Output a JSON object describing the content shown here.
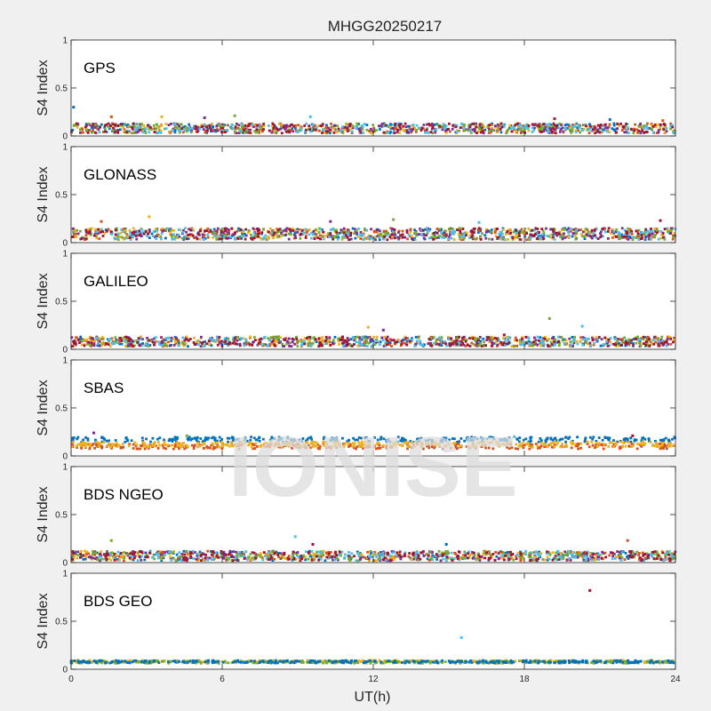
{
  "figure": {
    "title": "MHGG20250217",
    "xlabel": "UT(h)",
    "watermark": "IONISE"
  },
  "colors": [
    "#0072BD",
    "#D95319",
    "#EDB120",
    "#7E2F8E",
    "#77AC30",
    "#4DBEEE",
    "#A2142F"
  ],
  "chart_data": [
    {
      "type": "scatter",
      "panel_label": "GPS",
      "ylabel": "S4 Index",
      "xlim": [
        0,
        24
      ],
      "ylim": [
        0,
        1
      ],
      "xticks": [
        0,
        6,
        12,
        18,
        24
      ],
      "yticks": [
        0,
        0.5,
        1
      ],
      "show_xtick_labels": false,
      "baseline": 0.08,
      "spread": 0.05,
      "spikes": [
        [
          0.1,
          0.3
        ],
        [
          1.6,
          0.2
        ],
        [
          3.6,
          0.2
        ],
        [
          5.3,
          0.19
        ],
        [
          6.5,
          0.21
        ],
        [
          9.5,
          0.2
        ],
        [
          19.2,
          0.18
        ],
        [
          21.4,
          0.17
        ],
        [
          23.5,
          0.16
        ]
      ],
      "series": [
        {
          "color_index": 0
        },
        {
          "color_index": 1
        },
        {
          "color_index": 2
        },
        {
          "color_index": 3
        },
        {
          "color_index": 4
        },
        {
          "color_index": 5
        },
        {
          "color_index": 6
        }
      ]
    },
    {
      "type": "scatter",
      "panel_label": "GLONASS",
      "ylabel": "S4 Index",
      "xlim": [
        0,
        24
      ],
      "ylim": [
        0,
        1
      ],
      "xticks": [
        0,
        6,
        12,
        18,
        24
      ],
      "yticks": [
        0,
        0.5,
        1
      ],
      "show_xtick_labels": false,
      "baseline": 0.09,
      "spread": 0.06,
      "spikes": [
        [
          1.2,
          0.22
        ],
        [
          3.1,
          0.27
        ],
        [
          10.3,
          0.22
        ],
        [
          12.8,
          0.24
        ],
        [
          16.2,
          0.21
        ],
        [
          23.4,
          0.23
        ]
      ],
      "series": [
        {
          "color_index": 0
        },
        {
          "color_index": 1
        },
        {
          "color_index": 2
        },
        {
          "color_index": 3
        },
        {
          "color_index": 4
        },
        {
          "color_index": 5
        },
        {
          "color_index": 6
        }
      ]
    },
    {
      "type": "scatter",
      "panel_label": "GALILEO",
      "ylabel": "S4 Index",
      "xlim": [
        0,
        24
      ],
      "ylim": [
        0,
        1
      ],
      "xticks": [
        0,
        6,
        12,
        18,
        24
      ],
      "yticks": [
        0,
        0.5,
        1
      ],
      "show_xtick_labels": false,
      "baseline": 0.08,
      "spread": 0.05,
      "spikes": [
        [
          11.8,
          0.23
        ],
        [
          12.4,
          0.2
        ],
        [
          19.0,
          0.32
        ],
        [
          20.3,
          0.24
        ],
        [
          17.2,
          0.15
        ]
      ],
      "series": [
        {
          "color_index": 0
        },
        {
          "color_index": 1
        },
        {
          "color_index": 2
        },
        {
          "color_index": 3
        },
        {
          "color_index": 4
        },
        {
          "color_index": 5
        },
        {
          "color_index": 6
        }
      ]
    },
    {
      "type": "scatter",
      "panel_label": "SBAS",
      "ylabel": "S4 Index",
      "xlim": [
        0,
        24
      ],
      "ylim": [
        0,
        1
      ],
      "xticks": [
        0,
        6,
        12,
        18,
        24
      ],
      "yticks": [
        0,
        0.5,
        1
      ],
      "show_xtick_labels": false,
      "baseline": 0.13,
      "spread": 0.03,
      "spikes": [
        [
          0.9,
          0.24
        ],
        [
          4.6,
          0.21
        ],
        [
          17.6,
          0.2
        ],
        [
          22.3,
          0.21
        ]
      ],
      "series": [
        {
          "color_index": 0,
          "level": 0.17
        },
        {
          "color_index": 1,
          "level": 0.1
        },
        {
          "color_index": 2,
          "level": 0.12
        }
      ]
    },
    {
      "type": "scatter",
      "panel_label": "BDS NGEO",
      "ylabel": "S4 Index",
      "xlim": [
        0,
        24
      ],
      "ylim": [
        0,
        1
      ],
      "xticks": [
        0,
        6,
        12,
        18,
        24
      ],
      "yticks": [
        0,
        0.5,
        1
      ],
      "show_xtick_labels": false,
      "baseline": 0.07,
      "spread": 0.05,
      "spikes": [
        [
          1.6,
          0.23
        ],
        [
          8.9,
          0.27
        ],
        [
          9.6,
          0.19
        ],
        [
          14.9,
          0.19
        ],
        [
          22.1,
          0.23
        ]
      ],
      "series": [
        {
          "color_index": 0
        },
        {
          "color_index": 1
        },
        {
          "color_index": 2
        },
        {
          "color_index": 3
        },
        {
          "color_index": 4
        },
        {
          "color_index": 5
        },
        {
          "color_index": 6
        }
      ]
    },
    {
      "type": "scatter",
      "panel_label": "BDS GEO",
      "ylabel": "S4 Index",
      "xlim": [
        0,
        24
      ],
      "ylim": [
        0,
        1
      ],
      "xticks": [
        0,
        6,
        12,
        18,
        24
      ],
      "yticks": [
        0,
        0.5,
        1
      ],
      "xtick_labels": [
        "0",
        "6",
        "12",
        "18",
        "24"
      ],
      "show_xtick_labels": true,
      "baseline": 0.08,
      "spread": 0.015,
      "spikes": [
        [
          15.5,
          0.33
        ],
        [
          20.6,
          0.82
        ]
      ],
      "series": [
        {
          "color_index": 2,
          "level": 0.08
        },
        {
          "color_index": 4,
          "level": 0.075
        },
        {
          "color_index": 0,
          "level": 0.078
        }
      ]
    }
  ]
}
